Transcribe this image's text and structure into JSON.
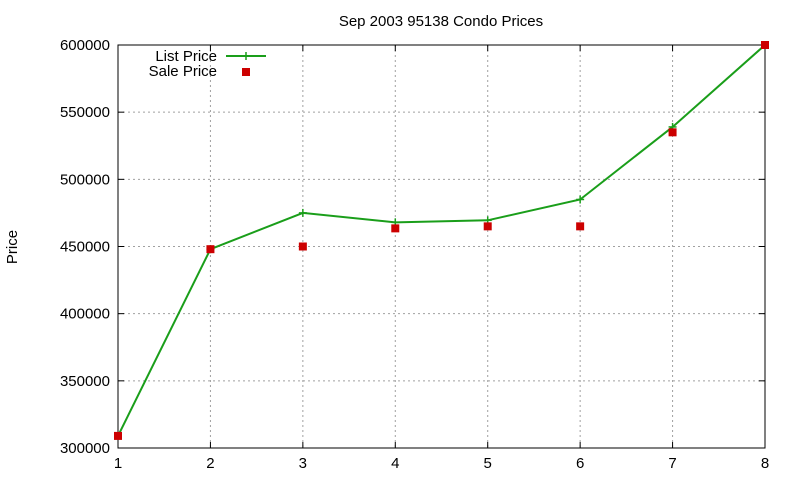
{
  "chart_data": {
    "type": "line",
    "title": "Sep 2003 95138 Condo Prices",
    "xlabel": "",
    "ylabel": "Price",
    "x": [
      1,
      2,
      3,
      4,
      5,
      6,
      7,
      8
    ],
    "xlim": [
      1,
      8
    ],
    "ylim": [
      300000,
      600000
    ],
    "xticks": [
      "1",
      "2",
      "3",
      "4",
      "5",
      "6",
      "7",
      "8"
    ],
    "yticks": [
      "300000",
      "350000",
      "400000",
      "450000",
      "500000",
      "550000",
      "600000"
    ],
    "grid": true,
    "legend_position": "top-left",
    "series": [
      {
        "name": "List Price",
        "style": "line+cross",
        "color": "#1a9e1a",
        "values": [
          309000,
          448000,
          475000,
          468000,
          469500,
          485000,
          539000,
          600000
        ]
      },
      {
        "name": "Sale Price",
        "style": "square-points",
        "color": "#cc0000",
        "values": [
          309000,
          448000,
          450000,
          463500,
          465000,
          465000,
          535000,
          600000
        ]
      }
    ]
  }
}
